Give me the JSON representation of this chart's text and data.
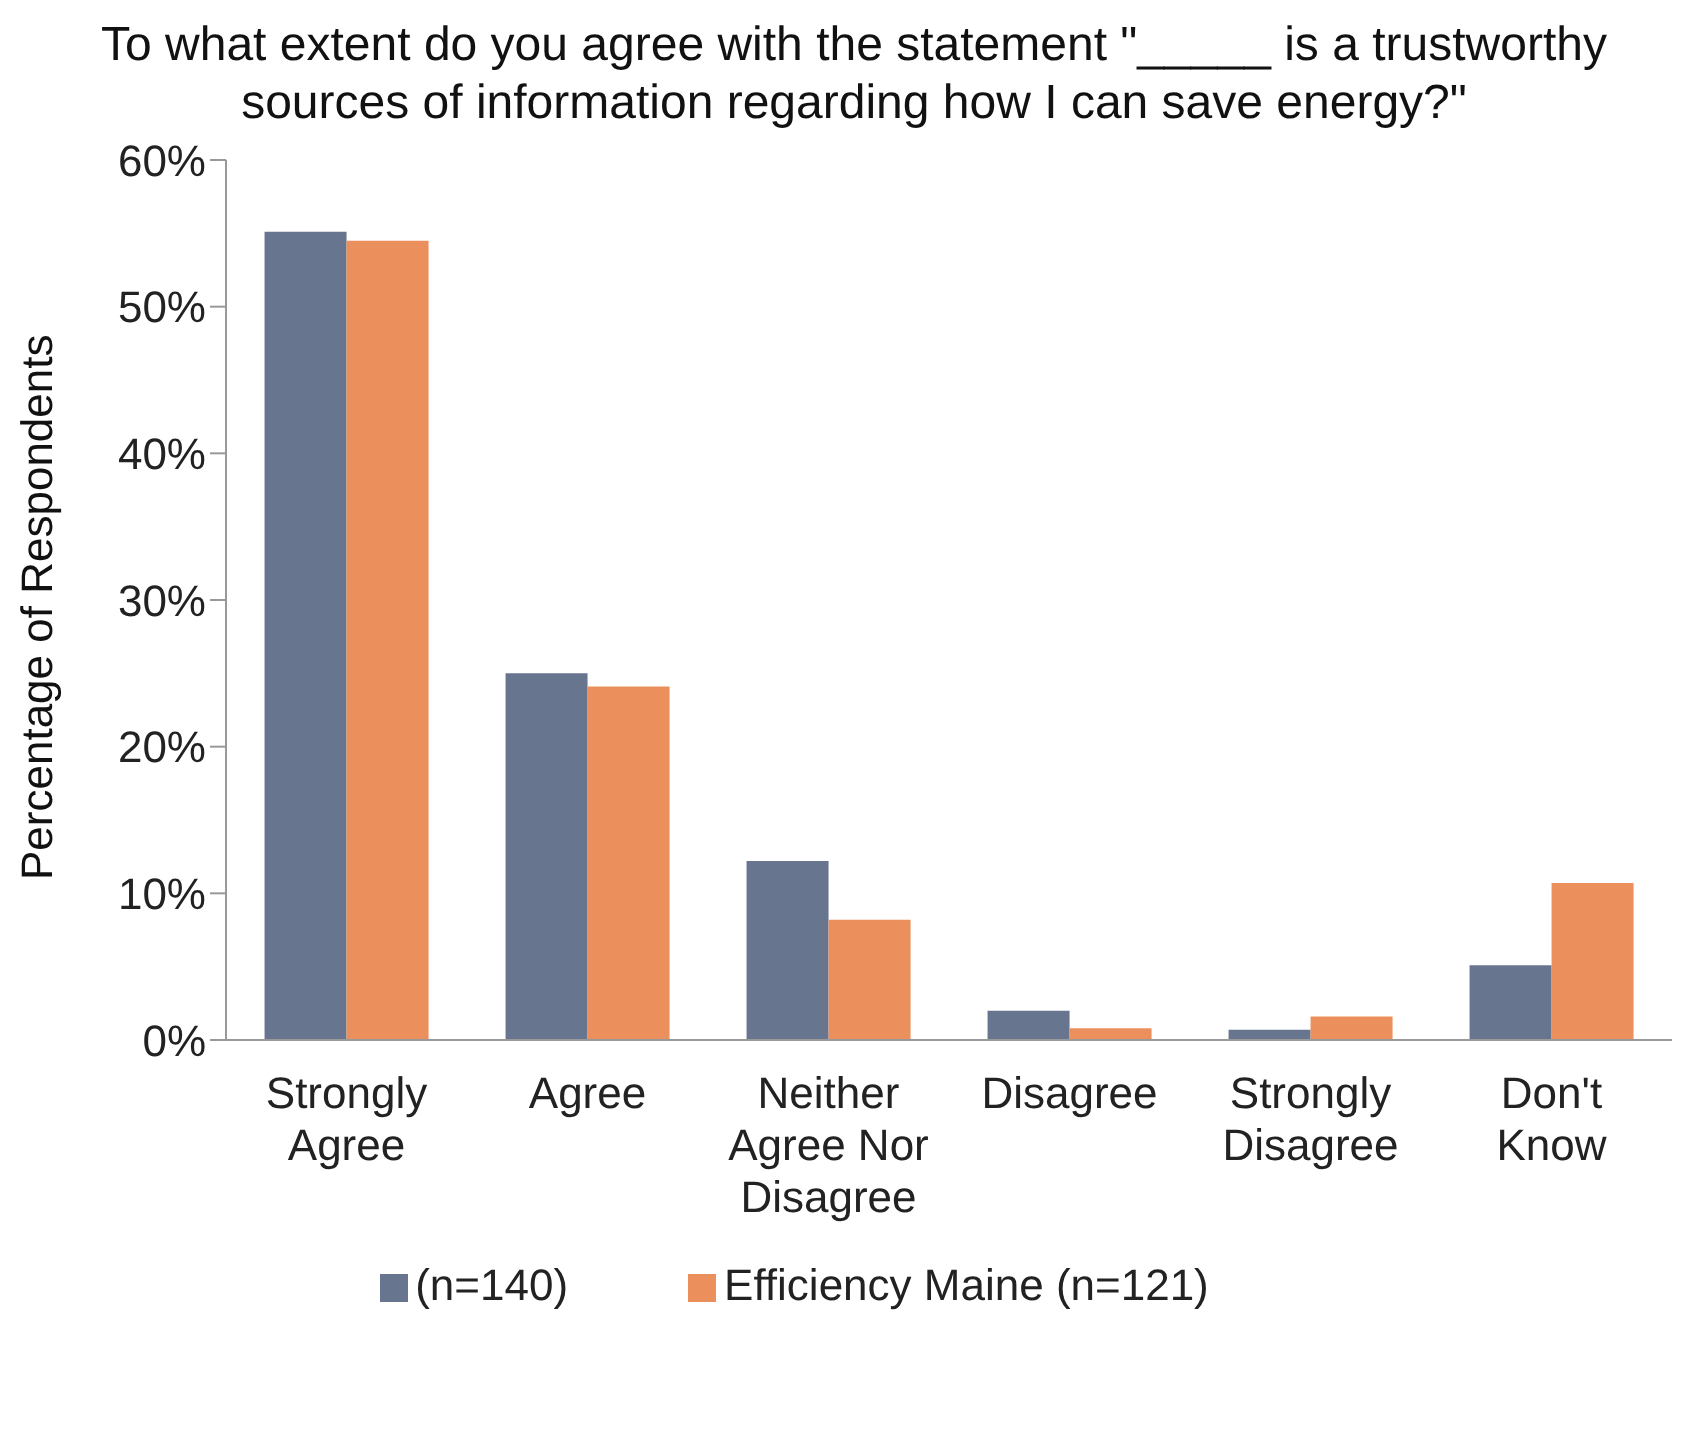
{
  "chart_data": {
    "type": "bar",
    "title": "To what extent do you agree with the statement \"_____ is a trustworthy sources of information regarding how I can save energy?\"",
    "ylabel": "Percentage of Respondents",
    "categories": [
      "Strongly Agree",
      "Agree",
      "Neither Agree Nor Disagree",
      "Disagree",
      "Strongly Disagree",
      "Don't Know"
    ],
    "series": [
      {
        "name": "(n=140)",
        "color": "#68758f",
        "values": [
          55.1,
          25.0,
          12.2,
          2.0,
          0.7,
          5.1
        ]
      },
      {
        "name": "Efficiency Maine (n=121)",
        "color": "#eb8f5c",
        "values": [
          54.5,
          24.1,
          8.2,
          0.8,
          1.6,
          10.7
        ]
      }
    ],
    "ylim": [
      0,
      60
    ],
    "yticks": [
      {
        "value": 0,
        "label": "0%"
      },
      {
        "value": 10,
        "label": "10%"
      },
      {
        "value": 20,
        "label": "20%"
      },
      {
        "value": 30,
        "label": "30%"
      },
      {
        "value": 40,
        "label": "40%"
      },
      {
        "value": 50,
        "label": "50%"
      },
      {
        "value": 60,
        "label": "60%"
      }
    ],
    "grid": false,
    "legend": "bottom"
  }
}
